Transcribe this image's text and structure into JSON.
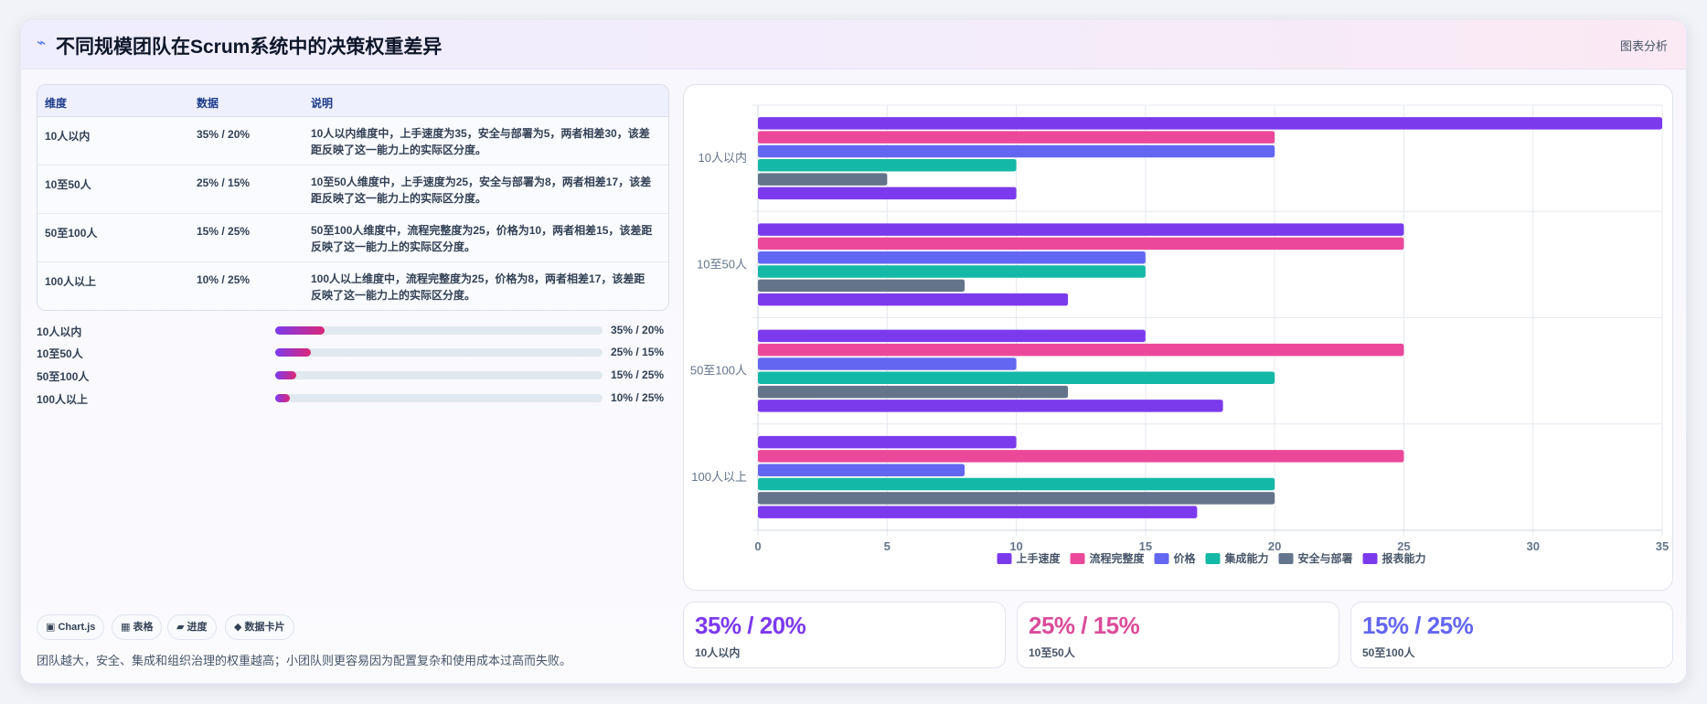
{
  "header": {
    "icon": "trend-icon",
    "title": "不同规模团队在Scrum系统中的决策权重差异",
    "right_label": "图表分析"
  },
  "table": {
    "columns": [
      "维度",
      "数据",
      "说明"
    ],
    "rows": [
      {
        "dim": "10人以内",
        "data": "35% / 20%",
        "desc": "10人以内维度中，上手速度为35，安全与部署为5，两者相差30，该差距反映了这一能力上的实际区分度。"
      },
      {
        "dim": "10至50人",
        "data": "25% / 15%",
        "desc": "10至50人维度中，上手速度为25，安全与部署为8，两者相差17，该差距反映了这一能力上的实际区分度。"
      },
      {
        "dim": "50至100人",
        "data": "15% / 25%",
        "desc": "50至100人维度中，流程完整度为25，价格为10，两者相差15，该差距反映了这一能力上的实际区分度。"
      },
      {
        "dim": "100人以上",
        "data": "10% / 25%",
        "desc": "100人以上维度中，流程完整度为25，价格为8，两者相差17，该差距反映了这一能力上的实际区分度。"
      }
    ]
  },
  "progress": [
    {
      "label": "10人以内",
      "value": 0.15,
      "text": "35% / 20%"
    },
    {
      "label": "10至50人",
      "value": 0.11,
      "text": "25% / 15%"
    },
    {
      "label": "50至100人",
      "value": 0.065,
      "text": "15% / 25%"
    },
    {
      "label": "100人以上",
      "value": 0.045,
      "text": "10% / 25%"
    }
  ],
  "chips": [
    "▣ Chart.js",
    "▦ 表格",
    "▰ 进度",
    "◆ 数据卡片"
  ],
  "note": "团队越大，安全、集成和组织治理的权重越高；小团队则更容易因为配置复杂和使用成本过高而失败。",
  "kpis": [
    {
      "value": "35% / 20%",
      "label": "10人以内",
      "color": "#7c3aed"
    },
    {
      "value": "25% / 15%",
      "label": "10至50人",
      "color": "#db4c9a"
    },
    {
      "value": "15% / 25%",
      "label": "50至100人",
      "color": "#6366f1"
    }
  ],
  "chart_data": {
    "type": "bar",
    "orientation": "horizontal",
    "categories": [
      "10人以内",
      "10至50人",
      "50至100人",
      "100人以上"
    ],
    "series": [
      {
        "name": "上手速度",
        "color": "#7c3aed",
        "values": [
          35,
          25,
          15,
          10
        ]
      },
      {
        "name": "流程完整度",
        "color": "#ec4899",
        "values": [
          20,
          25,
          25,
          25
        ]
      },
      {
        "name": "价格",
        "color": "#6366f1",
        "values": [
          20,
          15,
          10,
          8
        ]
      },
      {
        "name": "集成能力",
        "color": "#14b8a6",
        "values": [
          10,
          15,
          20,
          20
        ]
      },
      {
        "name": "安全与部署",
        "color": "#64748b",
        "values": [
          5,
          8,
          12,
          20
        ]
      },
      {
        "name": "报表能力",
        "color": "#7c3aed",
        "values": [
          10,
          12,
          18,
          17
        ]
      }
    ],
    "xlim": [
      0,
      35
    ],
    "xticks": [
      0,
      5,
      10,
      15,
      20,
      25,
      30,
      35
    ],
    "grid": true,
    "legend": "bottom"
  }
}
